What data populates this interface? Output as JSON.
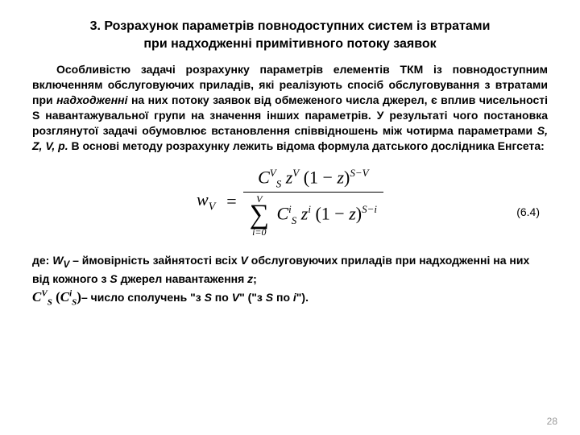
{
  "title_line1": "3. Розрахунок параметрів повнодоступних систем із втратами",
  "title_line2": "при надходженні примітивного потоку заявок",
  "para_seg1": "Особливістю задачі розрахунку параметрів елементів ТКМ із повнодоступним включенням обслуговуючих приладів, які реалізують спосіб обслуговування з втратами при ",
  "para_em1": "надходженні",
  "para_seg2": " на них потоку заявок від обмеженого числа джерел, є вплив чисельності S навантажувальної групи на значення інших параметрів. У результаті чого постановка розглянутої задачі обумовлює встановлення співвідношень між чотирма параметрами ",
  "para_em2": "S, Z, V, p.",
  "para_seg3": " В основі методу розрахунку лежить відома формула датського дослідника Енгсета:",
  "eq": {
    "lhs_base": "w",
    "lhs_sub": "V",
    "num_C": "C",
    "num_C_sup": "V",
    "num_C_sub": "S",
    "num_z": "z",
    "num_z_sup": "V",
    "num_paren_base": "1",
    "num_paren_minus": "z",
    "num_paren_sup": "S−V",
    "sum_top": "V",
    "sum_bot": "i=0",
    "den_C": "C",
    "den_C_sup": "i",
    "den_C_sub": "S",
    "den_z": "z",
    "den_z_sup": "i",
    "den_paren_base": "1",
    "den_paren_minus": "z",
    "den_paren_sup": "S−i",
    "number": "(6.4)"
  },
  "where_seg1": "де: ",
  "where_wv": "W",
  "where_wv_sub": "V",
  "where_seg2": " – ймовірність зайнятості всіх ",
  "where_V": "V",
  "where_seg3": " обслуговуючих приладів при надходженні на них від кожного з ",
  "where_S": "S",
  "where_seg4": " джерел навантаження ",
  "where_z": "z",
  "where_seg5": ";",
  "comb1_base": "C",
  "comb1_sup": "V",
  "comb1_sub": "S",
  "comb_open": " (",
  "comb2_base": "C",
  "comb2_sup": "i",
  "comb2_sub": "S",
  "comb_close": ") ",
  "where2_seg1": "–  число сполучень \"з ",
  "where2_S1": "S",
  "where2_seg2": " по ",
  "where2_V": "V",
  "where2_seg3": "\" (\"з ",
  "where2_S2": "S",
  "where2_seg4": " по ",
  "where2_i": "i",
  "where2_seg5": "\").",
  "page_number": "28"
}
